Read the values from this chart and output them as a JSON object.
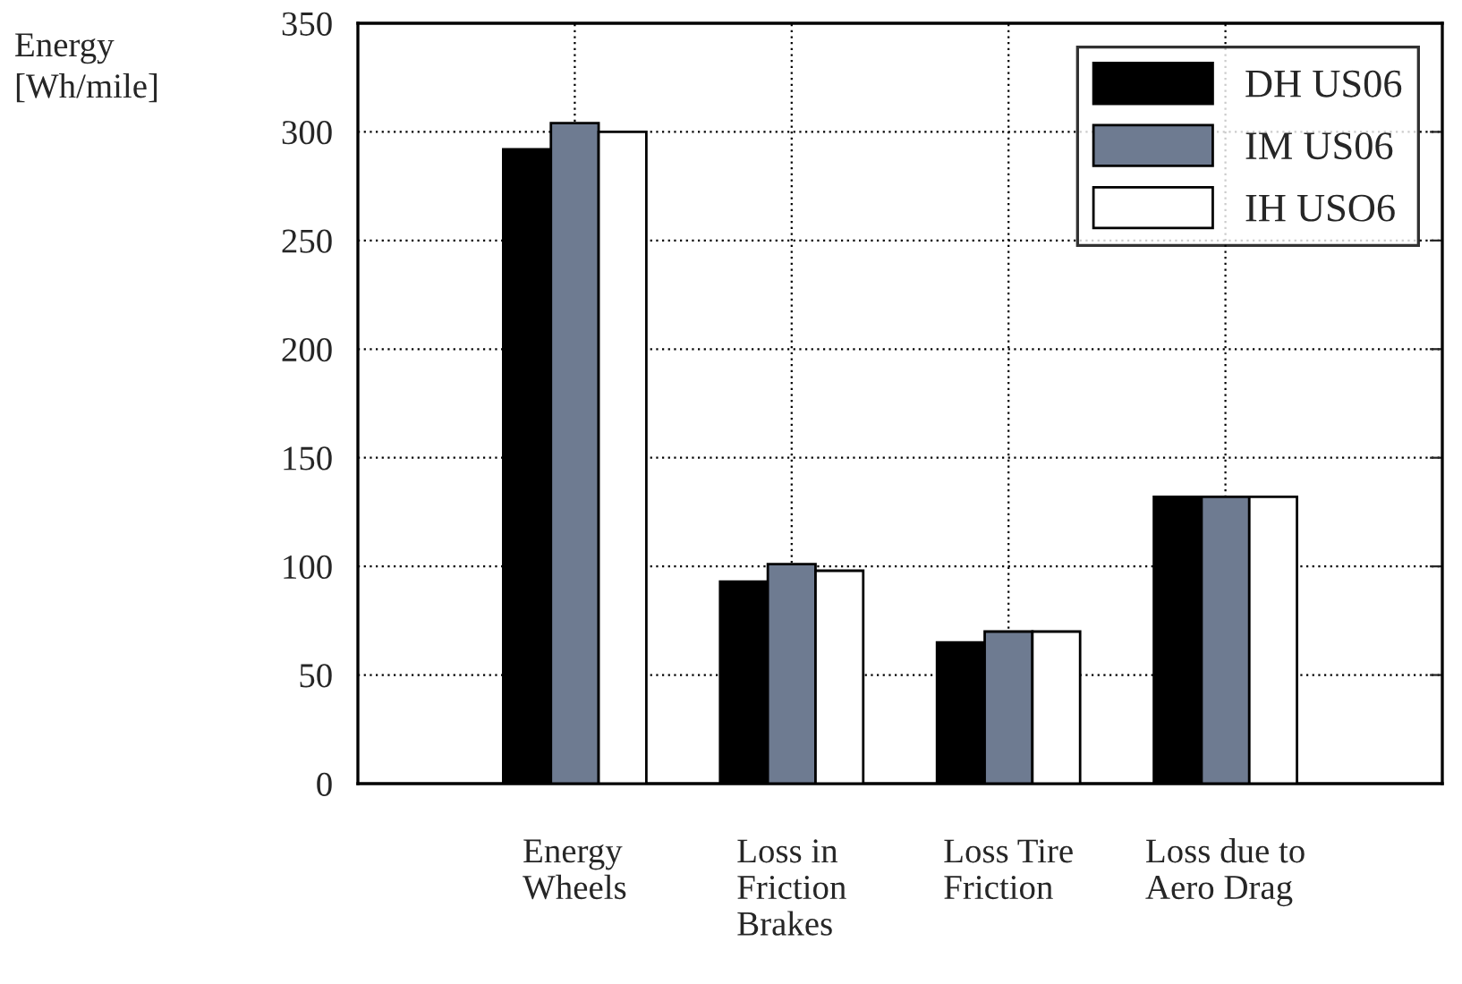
{
  "chart_data": {
    "type": "bar",
    "ylabel": "Energy\n[Wh/mile]",
    "categories": [
      "Energy\nWheels",
      "Loss in\nFriction\nBrakes",
      "Loss Tire\nFriction",
      "Loss due to\nAero Drag"
    ],
    "series": [
      {
        "name": "DH US06",
        "color": "#000000",
        "values": [
          292,
          93,
          65,
          132
        ]
      },
      {
        "name": "IM US06",
        "color": "#6e7b91",
        "values": [
          304,
          101,
          70,
          132
        ]
      },
      {
        "name": "IH USO6",
        "color": "#ffffff",
        "values": [
          300,
          98,
          70,
          132
        ]
      }
    ],
    "ylim": [
      0,
      350
    ],
    "yticks": [
      0,
      50,
      100,
      150,
      200,
      250,
      300,
      350
    ],
    "grid": true,
    "legend": "top right"
  }
}
